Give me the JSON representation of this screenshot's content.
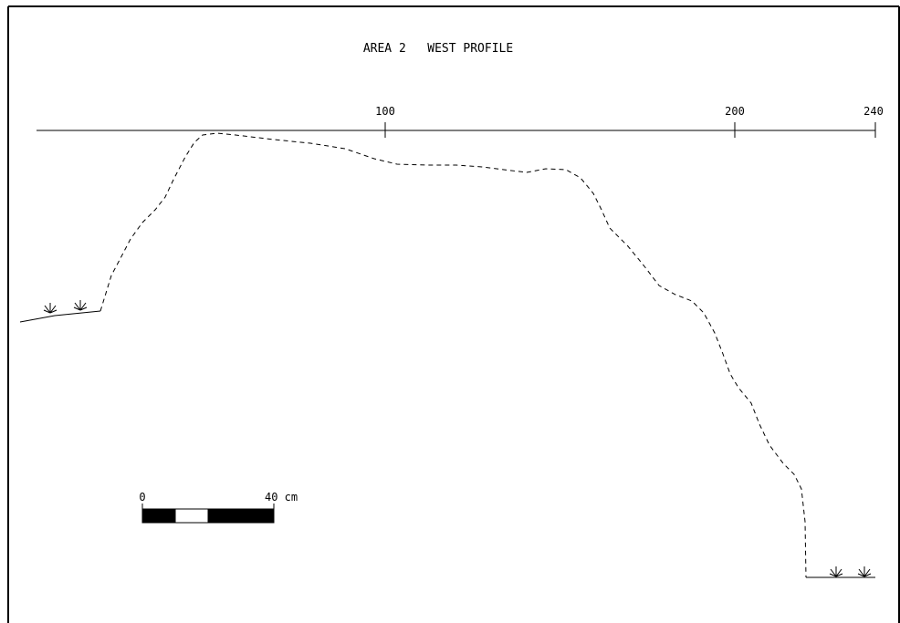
{
  "drawing": {
    "title": "AREA 2   WEST PROFILE",
    "line_color": "#000000",
    "background": "#ffffff"
  },
  "datum": {
    "ticks": [
      {
        "label": "100",
        "value": 100
      },
      {
        "label": "200",
        "value": 200
      },
      {
        "label": "240",
        "value": 240
      }
    ]
  },
  "scale_bar": {
    "start_label": "0",
    "end_label": "40 cm",
    "segments": [
      "black",
      "white",
      "black",
      "black"
    ]
  },
  "vegetation": {
    "icon": "grass-tuft-icon",
    "left_count": 2,
    "right_count": 2
  }
}
